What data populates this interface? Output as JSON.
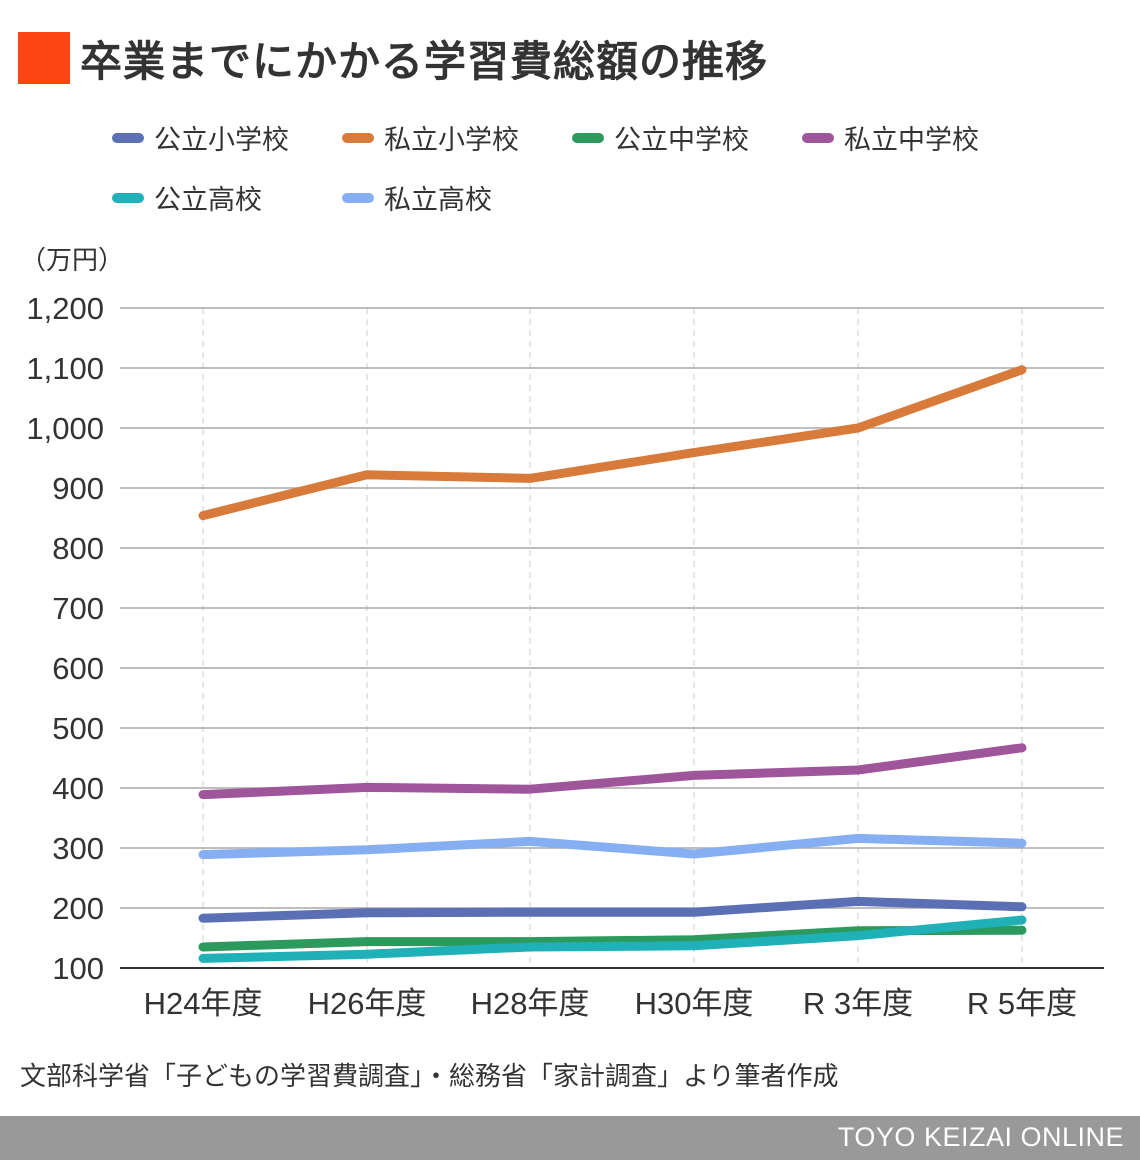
{
  "title": "卒業までにかかる学習費総額の推移",
  "accent_color": "#fc4512",
  "unit_label": "（万円）",
  "source": "文部科学省「子どもの学習費調査」・総務省「家計調査」より筆者作成",
  "brand": "TOYO KEIZAI ONLINE",
  "chart_data": {
    "type": "line",
    "title": "卒業までにかかる学習費総額の推移",
    "xlabel": "",
    "ylabel": "（万円）",
    "categories": [
      "H24年度",
      "H26年度",
      "H28年度",
      "H30年度",
      "R3年度",
      "R5年度"
    ],
    "ylim": [
      100,
      1200
    ],
    "yticks": [
      100,
      200,
      300,
      400,
      500,
      600,
      700,
      800,
      900,
      1000,
      1100,
      1200
    ],
    "ytick_labels": [
      "100",
      "200",
      "300",
      "400",
      "500",
      "600",
      "700",
      "800",
      "900",
      "1,000",
      "1,100",
      "1,200"
    ],
    "xtick_labels": [
      "H24年度",
      "H26年度",
      "H28年度",
      "H30年度",
      "R 3年度",
      "R 5年度"
    ],
    "grid": true,
    "legend_position": "top",
    "series": [
      {
        "name": "公立小学校",
        "color": "#5b6fb4",
        "values": [
          183,
          192,
          193,
          193,
          211,
          202
        ]
      },
      {
        "name": "私立小学校",
        "color": "#d77a3a",
        "values": [
          854,
          922,
          916,
          959,
          1000,
          1097
        ]
      },
      {
        "name": "公立中学校",
        "color": "#2c9a5c",
        "values": [
          135,
          144,
          144,
          147,
          162,
          163
        ]
      },
      {
        "name": "私立中学校",
        "color": "#9e5599",
        "values": [
          389,
          401,
          398,
          421,
          430,
          467
        ]
      },
      {
        "name": "公立高校",
        "color": "#1fb0b8",
        "values": [
          116,
          123,
          135,
          137,
          154,
          180
        ]
      },
      {
        "name": "私立高校",
        "color": "#86aef3",
        "values": [
          289,
          297,
          311,
          290,
          316,
          308
        ]
      }
    ]
  }
}
